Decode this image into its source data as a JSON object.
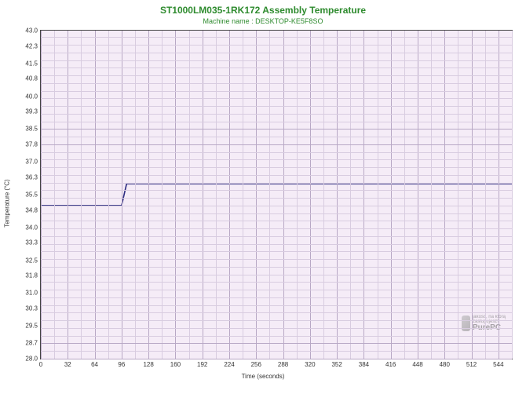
{
  "title": "ST1000LM035-1RK172 Assembly Temperature",
  "subtitle": "Machine name : DESKTOP-KE5F8SO",
  "chart": {
    "type": "line",
    "background_color": "#f5ecf7",
    "grid_major_color": "#b8a8c5",
    "grid_minor_color": "#d8cce0",
    "line_color": "#2a2a80",
    "line_width": 1.6,
    "xlabel": "Time (seconds)",
    "ylabel": "Temperature (°C)",
    "xlim": [
      0,
      560
    ],
    "ylim": [
      28.0,
      43.0
    ],
    "xtick_step": 32,
    "xminor_per_major": 2,
    "ytick_step": 0.7,
    "yminor_per_major": 2,
    "xticks": [
      0,
      32,
      64,
      96,
      128,
      160,
      192,
      224,
      256,
      288,
      320,
      352,
      384,
      416,
      448,
      480,
      512,
      544
    ],
    "yticks": [
      28.0,
      28.7,
      29.5,
      30.3,
      31.0,
      31.8,
      32.5,
      33.3,
      34.0,
      34.8,
      35.5,
      36.3,
      37.0,
      37.8,
      38.5,
      39.3,
      40.0,
      40.8,
      41.5,
      42.3,
      43.0
    ],
    "data": [
      {
        "x": 0,
        "y": 35.0
      },
      {
        "x": 96,
        "y": 35.0
      },
      {
        "x": 102,
        "y": 36.0
      },
      {
        "x": 560,
        "y": 36.0
      }
    ]
  },
  "watermark": {
    "brand": "PurePC",
    "tagline": "jakość, na którą zasługujesz!"
  }
}
